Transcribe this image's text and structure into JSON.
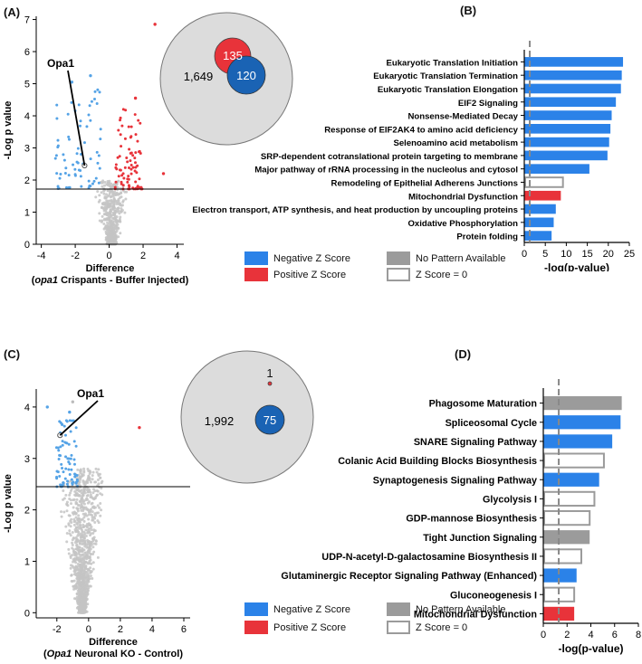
{
  "panels": {
    "A": "(A)",
    "B": "(B)",
    "C": "(C)",
    "D": "(D)"
  },
  "colors": {
    "blue": "#2b82e8",
    "red": "#e8333a",
    "gray": "#9b9b9b",
    "dark_blue": "#1a63b4",
    "venn_bg": "#dcdcdc"
  },
  "chart_data": [
    {
      "id": "volcano_A",
      "type": "scatter",
      "xlabel": "Difference",
      "xlabel_sub_em": "opa1",
      "xlabel_sub_rest": " Crispants - Buffer Injected",
      "ylabel": "-Log p value",
      "xlim": [
        -4.3,
        4.4
      ],
      "ylim": [
        0,
        7.1
      ],
      "x_ticks": [
        -4,
        -2,
        0,
        2,
        4
      ],
      "y_ticks": [
        0,
        1,
        2,
        3,
        4,
        5,
        6,
        7
      ],
      "threshold_y": 1.72,
      "annotation": {
        "label": "Opa1",
        "x": -1.45,
        "y": 2.45
      },
      "extra_points": [
        {
          "x": 2.7,
          "y": 6.85,
          "color": "red"
        },
        {
          "x": 1.55,
          "y": 4.55,
          "color": "red"
        },
        {
          "x": -2.2,
          "y": 5.05,
          "color": "blue"
        },
        {
          "x": -1.1,
          "y": 5.25,
          "color": "blue"
        },
        {
          "x": 3.2,
          "y": 2.2,
          "color": "red"
        }
      ]
    },
    {
      "id": "venn_A",
      "type": "venn",
      "outer_count": "1,649",
      "red_count": "135",
      "blue_count": "120"
    },
    {
      "id": "bars_B",
      "type": "bar",
      "orientation": "horizontal",
      "xlabel": "-log(p-value)",
      "xlim": [
        0,
        25
      ],
      "x_ticks": [
        0,
        5,
        10,
        15,
        20,
        25
      ],
      "threshold": 1.3,
      "categories": [
        "Eukaryotic Translation Initiation",
        "Eukaryotic Translation Termination",
        "Eukaryotic Translation Elongation",
        "EIF2 Signaling",
        "Nonsense-Mediated Decay",
        "Response of EIF2AK4 to amino acid deficiency",
        "Selenoamino acid metabolism",
        "SRP-dependent cotranslational protein targeting to membrane",
        "Major pathway of rRNA processing in the nucleolus and cytosol",
        "Remodeling of Epithelial Adherens Junctions",
        "Mitochondrial Dysfunction",
        "Electron transport, ATP synthesis, and heat production by uncoupling proteins",
        "Oxidative Phosphorylation",
        "Protein folding"
      ],
      "values": [
        23.5,
        23.2,
        23.0,
        21.8,
        20.8,
        20.5,
        20.2,
        19.8,
        15.5,
        9.2,
        8.7,
        7.5,
        7.0,
        6.5
      ],
      "status": [
        "negative",
        "negative",
        "negative",
        "negative",
        "negative",
        "negative",
        "negative",
        "negative",
        "negative",
        "zero",
        "positive",
        "negative",
        "negative",
        "negative"
      ]
    },
    {
      "id": "volcano_C",
      "type": "scatter",
      "xlabel": "Difference",
      "xlabel_sub_em": "Opa1",
      "xlabel_sub_rest": " Neuronal KO - Control",
      "ylabel": "-Log p value",
      "xlim": [
        -3.3,
        6.4
      ],
      "ylim": [
        -0.1,
        4.35
      ],
      "x_ticks": [
        -2,
        0,
        2,
        4,
        6
      ],
      "y_ticks": [
        0,
        1,
        2,
        3,
        4
      ],
      "threshold_y": 2.45,
      "annotation": {
        "label": "Opa1",
        "x": -1.8,
        "y": 3.45
      },
      "extra_points": [
        {
          "x": 3.2,
          "y": 3.6,
          "color": "red"
        },
        {
          "x": -1.0,
          "y": 4.1,
          "color": "gray"
        },
        {
          "x": -1.2,
          "y": 3.9,
          "color": "blue"
        },
        {
          "x": -2.6,
          "y": 4.0,
          "color": "blue"
        }
      ]
    },
    {
      "id": "venn_C",
      "type": "venn",
      "outer_count": "1,992",
      "red_count": "1",
      "blue_count": "75"
    },
    {
      "id": "bars_D",
      "type": "bar",
      "orientation": "horizontal",
      "xlabel": "-log(p-value)",
      "xlim": [
        0,
        8
      ],
      "x_ticks": [
        0,
        2,
        4,
        6,
        8
      ],
      "threshold": 1.3,
      "categories": [
        "Phagosome Maturation",
        "Spliceosomal Cycle",
        "SNARE Signaling Pathway",
        "Colanic Acid Building Blocks Biosynthesis",
        "Synaptogenesis Signaling Pathway",
        "Glycolysis I",
        "GDP-mannose Biosynthesis",
        "Tight Junction Signaling",
        "UDP-N-acetyl-D-galactosamine Biosynthesis II",
        "Glutaminergic Receptor Signaling Pathway (Enhanced)",
        "Gluconeogenesis I",
        "Mitochondrial Dysfunction"
      ],
      "values": [
        6.6,
        6.5,
        5.8,
        5.1,
        4.7,
        4.3,
        3.9,
        3.9,
        3.2,
        2.8,
        2.6,
        2.6
      ],
      "status": [
        "none",
        "negative",
        "negative",
        "zero",
        "negative",
        "zero",
        "zero",
        "none",
        "zero",
        "negative",
        "zero",
        "positive"
      ]
    }
  ],
  "legend": {
    "negative": "Negative Z Score",
    "positive": "Positive Z Score",
    "none": "No Pattern Available",
    "zero": "Z Score = 0"
  }
}
